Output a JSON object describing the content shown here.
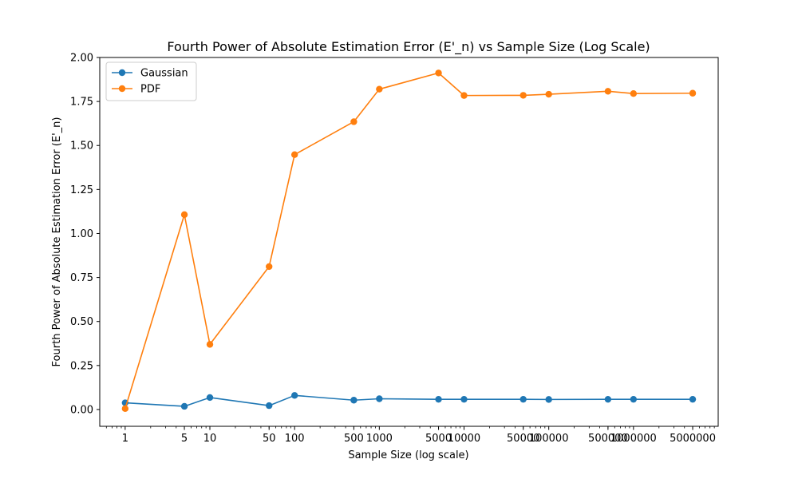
{
  "chart_data": {
    "type": "line",
    "title": "Fourth Power of Absolute Estimation Error (E'_n) vs Sample Size (Log Scale)",
    "xlabel": "Sample Size (log scale)",
    "ylabel": "Fourth Power of Absolute Estimation Error (E'_n)",
    "x_scale": "log",
    "x": [
      1,
      5,
      10,
      50,
      100,
      500,
      1000,
      5000,
      10000,
      50000,
      100000,
      500000,
      1000000,
      5000000
    ],
    "x_tick_labels": [
      "1",
      "5",
      "10",
      "50",
      "100",
      "500",
      "1000",
      "5000",
      "10000",
      "50000",
      "100000",
      "500000",
      "1000000",
      "5000000"
    ],
    "ylim": [
      -0.0955,
      2.0
    ],
    "y_ticks": [
      0.0,
      0.25,
      0.5,
      0.75,
      1.0,
      1.25,
      1.5,
      1.75,
      2.0
    ],
    "y_tick_labels": [
      "0.00",
      "0.25",
      "0.50",
      "0.75",
      "1.00",
      "1.25",
      "1.50",
      "1.75",
      "2.00"
    ],
    "grid": false,
    "legend_position": "top-left",
    "series": [
      {
        "name": "Gaussian",
        "color": "#1f77b4",
        "values": [
          0.038,
          0.018,
          0.068,
          0.022,
          0.08,
          0.053,
          0.061,
          0.058,
          0.058,
          0.058,
          0.057,
          0.058,
          0.058,
          0.058
        ]
      },
      {
        "name": "PDF",
        "color": "#ff7f0e",
        "values": [
          0.005,
          1.107,
          0.37,
          0.812,
          1.448,
          1.635,
          1.82,
          1.912,
          1.784,
          1.785,
          1.791,
          1.808,
          1.795,
          1.797
        ]
      }
    ]
  }
}
